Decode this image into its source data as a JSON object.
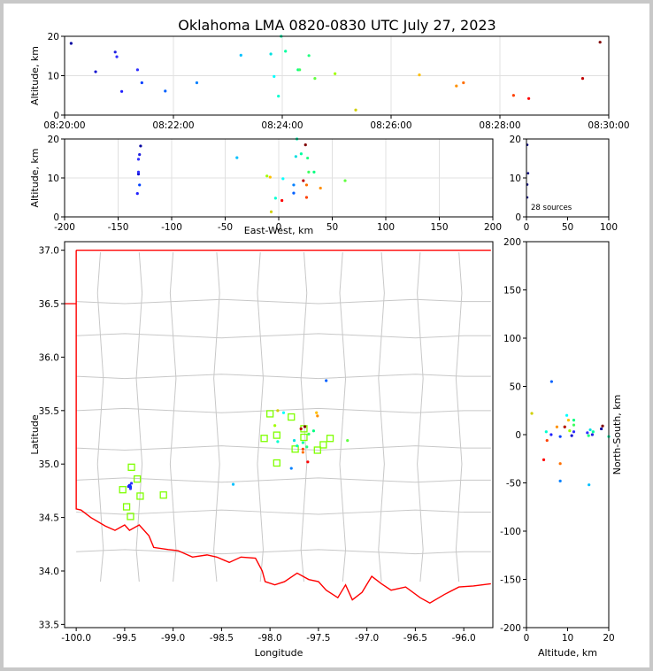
{
  "title": "Oklahoma LMA 0820-0830 UTC July 27, 2023",
  "colors": {
    "state_border": "#ff0000",
    "county_lines": "#c8c8c8",
    "station_marker": "#7fff00",
    "grid": "#e0e0e0"
  },
  "chart_data": [
    {
      "id": "time-height",
      "type": "scatter",
      "ylabel": "Altitude, km",
      "ylim": [
        0,
        20
      ],
      "yticks": [
        "0",
        "10",
        "20"
      ],
      "xlim": [
        "08:20:00",
        "08:30:00"
      ],
      "xticks": [
        "08:20:00",
        "08:22:00",
        "08:24:00",
        "08:26:00",
        "08:28:00",
        "08:30:00"
      ],
      "grid": true
    },
    {
      "id": "ew-height",
      "type": "scatter",
      "xlabel": "East-West, km",
      "ylabel": "Altitude, km",
      "xlim": [
        -200,
        200
      ],
      "ylim": [
        0,
        20
      ],
      "xticks": [
        "-200",
        "-150",
        "-100",
        "-50",
        "0",
        "50",
        "100",
        "150",
        "200"
      ],
      "yticks": [
        "0",
        "10",
        "20"
      ],
      "grid": true
    },
    {
      "id": "height-histogram",
      "type": "scatter",
      "xlim": [
        0,
        100
      ],
      "ylim": [
        0,
        20
      ],
      "xticks": [
        "0",
        "50",
        "100"
      ],
      "yticks": [
        "0",
        "10",
        "20"
      ],
      "annotation": "28 sources"
    },
    {
      "id": "plan-view",
      "type": "scatter",
      "xlabel": "Longitude",
      "ylabel": "Latitude",
      "xlim": [
        -100.12,
        -95.7
      ],
      "ylim": [
        33.47,
        37.08
      ],
      "xticks": [
        "-100.0",
        "-99.5",
        "-99.0",
        "-98.5",
        "-98.0",
        "-97.5",
        "-97.0",
        "-96.5",
        "-96.0"
      ],
      "yticks": [
        "33.5",
        "34.0",
        "34.5",
        "35.0",
        "35.5",
        "36.0",
        "36.5",
        "37.0"
      ],
      "stations": [
        [
          -99.43,
          34.97
        ],
        [
          -99.37,
          34.86
        ],
        [
          -99.52,
          34.76
        ],
        [
          -99.48,
          34.6
        ],
        [
          -99.44,
          34.51
        ],
        [
          -99.34,
          34.7
        ],
        [
          -99.1,
          34.71
        ],
        [
          -98.0,
          35.47
        ],
        [
          -97.78,
          35.44
        ],
        [
          -98.06,
          35.24
        ],
        [
          -97.93,
          35.27
        ],
        [
          -97.93,
          35.01
        ],
        [
          -97.74,
          35.14
        ],
        [
          -97.65,
          35.25
        ],
        [
          -97.65,
          35.33
        ],
        [
          -97.51,
          35.13
        ],
        [
          -97.45,
          35.18
        ],
        [
          -97.38,
          35.24
        ]
      ]
    },
    {
      "id": "ns-height",
      "type": "scatter",
      "xlabel": "Altitude, km",
      "ylabel": "North-South, km",
      "xlim": [
        0,
        20
      ],
      "ylim": [
        -200,
        200
      ],
      "xticks": [
        "0",
        "10",
        "20"
      ],
      "yticks": [
        "-200",
        "-150",
        "-100",
        "-50",
        "0",
        "50",
        "100",
        "150",
        "200"
      ]
    }
  ],
  "sources": [
    {
      "t": 0.12,
      "alt": 18.2,
      "ew": -129,
      "ns": 6,
      "lon": -99.45,
      "lat": 34.8,
      "color": "#0000a0"
    },
    {
      "t": 0.57,
      "alt": 11.0,
      "ew": -131,
      "ns": -1,
      "lon": -99.44,
      "lat": 34.78,
      "color": "#1010d0"
    },
    {
      "t": 0.93,
      "alt": 16.0,
      "ew": -130,
      "ns": 0,
      "lon": -99.46,
      "lat": 34.79,
      "color": "#2020e0"
    },
    {
      "t": 0.96,
      "alt": 14.8,
      "ew": -131,
      "ns": 2,
      "lon": -99.44,
      "lat": 34.77,
      "color": "#3030ff"
    },
    {
      "t": 1.05,
      "alt": 6.0,
      "ew": -132,
      "ns": 0,
      "lon": -99.45,
      "lat": 34.8,
      "color": "#2020ff"
    },
    {
      "t": 1.34,
      "alt": 11.5,
      "ew": -131,
      "ns": 3,
      "lon": -99.43,
      "lat": 34.82,
      "color": "#3030ff"
    },
    {
      "t": 1.42,
      "alt": 8.2,
      "ew": -130,
      "ns": -2,
      "lon": -99.44,
      "lat": 34.79,
      "color": "#0040ff"
    },
    {
      "t": 1.85,
      "alt": 6.1,
      "ew": 14,
      "ns": 55,
      "lon": -97.42,
      "lat": 35.78,
      "color": "#0060ff"
    },
    {
      "t": 2.43,
      "alt": 8.2,
      "ew": 14,
      "ns": -48,
      "lon": -97.78,
      "lat": 34.96,
      "color": "#0080ff"
    },
    {
      "t": 3.24,
      "alt": 15.2,
      "ew": -39,
      "ns": -52,
      "lon": -98.38,
      "lat": 34.81,
      "color": "#00c0ff"
    },
    {
      "t": 3.79,
      "alt": 15.5,
      "ew": 16,
      "ns": 5,
      "lon": -97.75,
      "lat": 35.22,
      "color": "#00e0e0"
    },
    {
      "t": 3.85,
      "alt": 9.8,
      "ew": 4,
      "ns": 20,
      "lon": -97.86,
      "lat": 35.48,
      "color": "#00ffff"
    },
    {
      "t": 3.93,
      "alt": 4.8,
      "ew": -3,
      "ns": 3,
      "lon": -97.92,
      "lat": 35.21,
      "color": "#00ffd0"
    },
    {
      "t": 3.98,
      "alt": 20.0,
      "ew": 17,
      "ns": -2,
      "lon": -97.72,
      "lat": 35.17,
      "color": "#00ffb0"
    },
    {
      "t": 4.06,
      "alt": 16.2,
      "ew": 21,
      "ns": 3,
      "lon": -97.66,
      "lat": 35.2,
      "color": "#00ffa0"
    },
    {
      "t": 4.29,
      "alt": 11.5,
      "ew": 33,
      "ns": 15,
      "lon": -97.55,
      "lat": 35.31,
      "color": "#00ff80"
    },
    {
      "t": 4.32,
      "alt": 11.5,
      "ew": 28,
      "ns": 10,
      "lon": -97.6,
      "lat": 35.28,
      "color": "#40ff60"
    },
    {
      "t": 4.49,
      "alt": 15.1,
      "ew": 27,
      "ns": -1,
      "lon": -97.62,
      "lat": 35.16,
      "color": "#20ff80"
    },
    {
      "t": 4.6,
      "alt": 9.3,
      "ew": 62,
      "ns": 8,
      "lon": -97.2,
      "lat": 35.22,
      "color": "#60ff40"
    },
    {
      "t": 4.97,
      "alt": 10.5,
      "ew": -11,
      "ns": 4,
      "lon": -97.95,
      "lat": 35.36,
      "color": "#a0ff00"
    },
    {
      "t": 5.35,
      "alt": 1.3,
      "ew": -7,
      "ns": 22,
      "lon": -97.92,
      "lat": 35.5,
      "color": "#d0d000"
    },
    {
      "t": 6.52,
      "alt": 10.2,
      "ew": -8,
      "ns": 15,
      "lon": -97.52,
      "lat": 35.48,
      "color": "#ffc000"
    },
    {
      "t": 7.2,
      "alt": 7.4,
      "ew": 39,
      "ns": 8,
      "lon": -97.51,
      "lat": 35.45,
      "color": "#ff9000"
    },
    {
      "t": 7.33,
      "alt": 8.2,
      "ew": 26,
      "ns": -30,
      "lon": -97.66,
      "lat": 35.11,
      "color": "#ff7000"
    },
    {
      "t": 8.25,
      "alt": 5.0,
      "ew": 26,
      "ns": -6,
      "lon": -97.66,
      "lat": 35.14,
      "color": "#ff4000"
    },
    {
      "t": 8.53,
      "alt": 4.2,
      "ew": 3,
      "ns": -26,
      "lon": -97.61,
      "lat": 35.02,
      "color": "#ff0000"
    },
    {
      "t": 9.52,
      "alt": 9.3,
      "ew": 23,
      "ns": 8,
      "lon": -97.68,
      "lat": 35.33,
      "color": "#c00000"
    },
    {
      "t": 9.84,
      "alt": 18.5,
      "ew": 25,
      "ns": 9,
      "lon": -97.64,
      "lat": 35.35,
      "color": "#800000"
    }
  ]
}
